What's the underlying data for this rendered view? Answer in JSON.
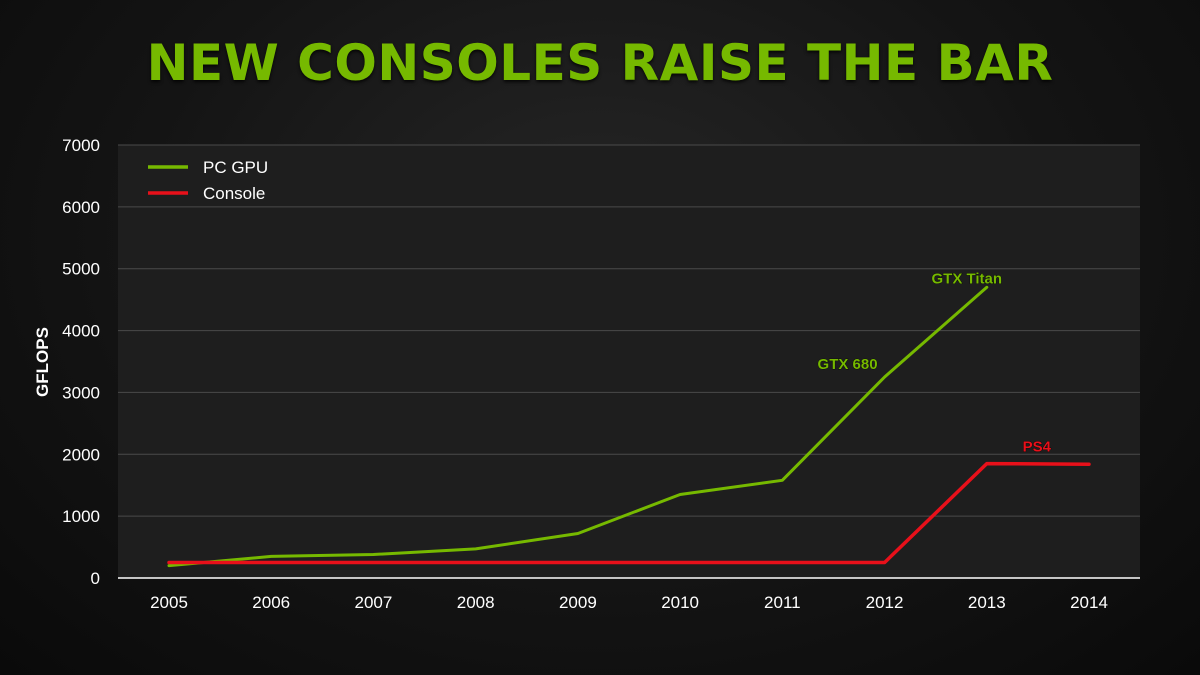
{
  "title": "NEW CONSOLES RAISE THE BAR",
  "colors": {
    "pc_gpu": "#76b900",
    "console": "#e8101a",
    "title": "#76b900"
  },
  "chart_data": {
    "type": "line",
    "ylabel": "GFLOPS",
    "xlabel": "",
    "ylim": [
      0,
      7000
    ],
    "yticks": [
      "0",
      "1000",
      "2000",
      "3000",
      "4000",
      "5000",
      "6000",
      "7000"
    ],
    "categories": [
      "2005",
      "2006",
      "2007",
      "2008",
      "2009",
      "2010",
      "2011",
      "2012",
      "2013",
      "2014"
    ],
    "grid": true,
    "legend_placement": "top-left",
    "series": [
      {
        "name": "PC GPU",
        "color": "#76b900",
        "values": [
          200,
          350,
          380,
          470,
          720,
          1350,
          1580,
          3250,
          4700,
          null
        ]
      },
      {
        "name": "Console",
        "color": "#e8101a",
        "values": [
          250,
          250,
          250,
          250,
          250,
          250,
          250,
          250,
          1850,
          1840
        ]
      }
    ],
    "annotations": [
      {
        "text": "GTX Titan",
        "series": 0,
        "x": "2013",
        "y": 4700,
        "color": "#76b900"
      },
      {
        "text": "GTX 680",
        "series": 0,
        "x": "2012",
        "y": 3250,
        "color": "#76b900"
      },
      {
        "text": "PS4",
        "series": 1,
        "x": "2013",
        "y": 1850,
        "color": "#e8101a"
      }
    ]
  }
}
